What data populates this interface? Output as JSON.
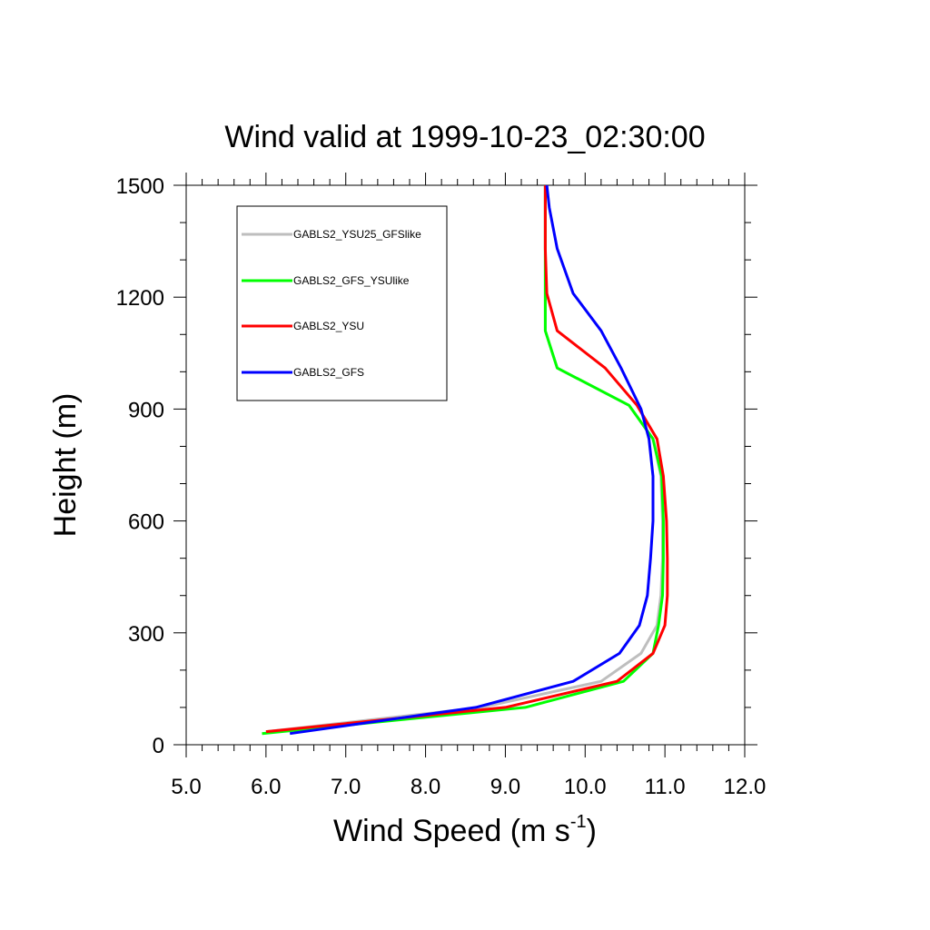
{
  "chart_data": {
    "type": "line",
    "title": "Wind valid at 1999-10-23_02:30:00",
    "xlabel": "Wind Speed (m s",
    "xlabel_superscript": "-1",
    "xlabel_suffix": ")",
    "ylabel": "Height (m)",
    "xlim": [
      5.0,
      12.0
    ],
    "ylim": [
      0,
      1500
    ],
    "x_ticks": [
      "5.0",
      "6.0",
      "7.0",
      "8.0",
      "9.0",
      "10.0",
      "11.0",
      "12.0"
    ],
    "y_ticks": [
      "0",
      "300",
      "600",
      "900",
      "1200",
      "1500"
    ],
    "grid": false,
    "legend_position": "top-left",
    "series": [
      {
        "name": "GABLS2_YSU25_GFSlike",
        "color": "#bebebe",
        "points": [
          [
            6.0,
            35
          ],
          [
            8.7,
            100
          ],
          [
            10.2,
            170
          ],
          [
            10.7,
            245
          ],
          [
            10.9,
            320
          ],
          [
            10.95,
            400
          ],
          [
            10.97,
            500
          ],
          [
            10.97,
            600
          ],
          [
            10.95,
            720
          ],
          [
            10.85,
            820
          ],
          [
            10.55,
            910
          ],
          [
            9.65,
            1010
          ],
          [
            9.5,
            1110
          ],
          [
            9.5,
            1210
          ],
          [
            9.5,
            1330
          ],
          [
            9.5,
            1500
          ]
        ]
      },
      {
        "name": "GABLS2_GFS_YSUlike",
        "color": "#00ff00",
        "points": [
          [
            5.95,
            30
          ],
          [
            9.25,
            100
          ],
          [
            10.48,
            170
          ],
          [
            10.85,
            245
          ],
          [
            10.92,
            320
          ],
          [
            10.97,
            400
          ],
          [
            10.98,
            500
          ],
          [
            10.98,
            600
          ],
          [
            10.96,
            720
          ],
          [
            10.85,
            820
          ],
          [
            10.55,
            910
          ],
          [
            9.65,
            1010
          ],
          [
            9.5,
            1110
          ],
          [
            9.5,
            1210
          ],
          [
            9.5,
            1330
          ],
          [
            9.5,
            1500
          ]
        ]
      },
      {
        "name": "GABLS2_YSU",
        "color": "#ff0000",
        "points": [
          [
            6.0,
            35
          ],
          [
            9.0,
            100
          ],
          [
            10.4,
            170
          ],
          [
            10.85,
            245
          ],
          [
            11.0,
            320
          ],
          [
            11.03,
            400
          ],
          [
            11.03,
            500
          ],
          [
            11.02,
            600
          ],
          [
            10.98,
            720
          ],
          [
            10.9,
            820
          ],
          [
            10.65,
            910
          ],
          [
            10.25,
            1010
          ],
          [
            9.65,
            1110
          ],
          [
            9.52,
            1210
          ],
          [
            9.5,
            1330
          ],
          [
            9.5,
            1500
          ]
        ]
      },
      {
        "name": "GABLS2_GFS",
        "color": "#0000ff",
        "points": [
          [
            6.3,
            30
          ],
          [
            8.63,
            100
          ],
          [
            9.85,
            170
          ],
          [
            10.43,
            245
          ],
          [
            10.68,
            320
          ],
          [
            10.78,
            400
          ],
          [
            10.82,
            500
          ],
          [
            10.85,
            600
          ],
          [
            10.85,
            720
          ],
          [
            10.8,
            820
          ],
          [
            10.7,
            900
          ],
          [
            10.45,
            1010
          ],
          [
            10.2,
            1110
          ],
          [
            9.85,
            1210
          ],
          [
            9.65,
            1330
          ],
          [
            9.55,
            1440
          ],
          [
            9.52,
            1500
          ]
        ]
      }
    ]
  }
}
